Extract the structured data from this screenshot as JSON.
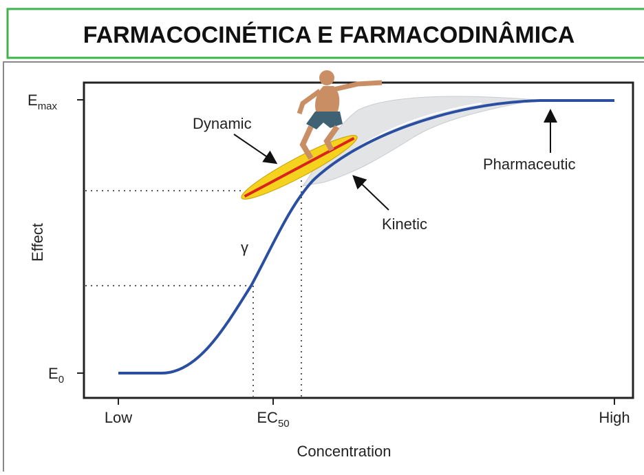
{
  "header": {
    "title": "FARMACOCINÉTICA E FARMACODINÂMICA"
  },
  "diagram": {
    "y_axis": {
      "label": "Effect",
      "ticks": [
        {
          "main": "E",
          "sub": "max"
        },
        {
          "main": "E",
          "sub": "0"
        }
      ]
    },
    "x_axis": {
      "label": "Concentration",
      "ticks": [
        {
          "main": "Low"
        },
        {
          "main": "EC",
          "sub": "50"
        },
        {
          "main": "High"
        }
      ]
    },
    "annotations": {
      "dynamic": "Dynamic",
      "kinetic": "Kinetic",
      "pharmaceutic": "Pharmaceutic",
      "gamma": "γ"
    }
  }
}
